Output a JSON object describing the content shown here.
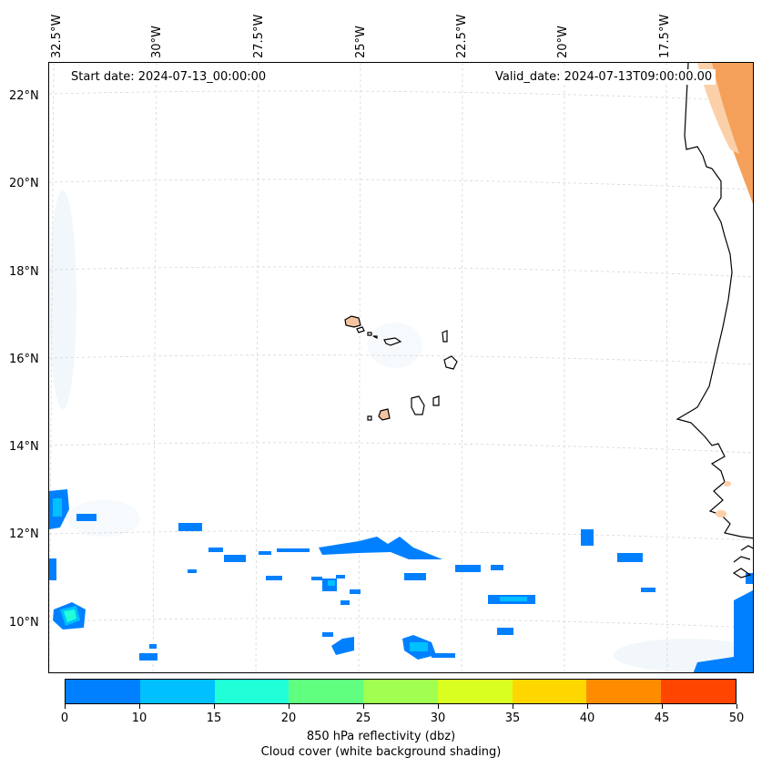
{
  "map": {
    "longitude_labels": [
      "32.5°W",
      "30°W",
      "27.5°W",
      "25°W",
      "22.5°W",
      "20°W",
      "17.5°W"
    ],
    "latitude_labels": [
      "22°N",
      "20°N",
      "18°N",
      "16°N",
      "14°N",
      "12°N",
      "10°N"
    ],
    "start_date_label": "Start date: 2024-07-13_00:00:00",
    "valid_date_label": "Valid_date: 2024-07-13T09:00:00.00",
    "gridlines": true,
    "coastline_color": "#000000",
    "cloud_shading": "white background shading",
    "warm_region_color": "#f5a05a"
  },
  "colorbar": {
    "ticks": [
      "0",
      "10",
      "15",
      "20",
      "25",
      "30",
      "35",
      "40",
      "45",
      "50"
    ],
    "colors": [
      "#0080ff",
      "#00c0ff",
      "#20ffd8",
      "#60ff80",
      "#a0ff50",
      "#d8ff20",
      "#ffd700",
      "#ff8c00",
      "#ff4500"
    ],
    "label_line1": "850 hPa reflectivity (dbz)",
    "label_line2": "Cloud cover (white background shading)"
  }
}
